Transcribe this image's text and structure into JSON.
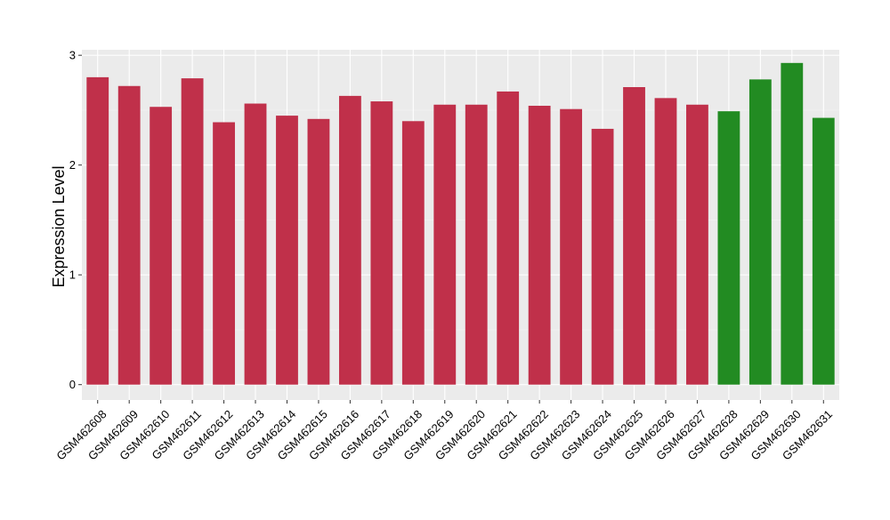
{
  "chart_data": {
    "type": "bar",
    "title": "",
    "xlabel": "",
    "ylabel": "Expression Level",
    "ylim": [
      -0.14,
      3.05
    ],
    "yticks": [
      0,
      1,
      2,
      3
    ],
    "grid": true,
    "legend": "none",
    "categories": [
      "GSM462608",
      "GSM462609",
      "GSM462610",
      "GSM462611",
      "GSM462612",
      "GSM462613",
      "GSM462614",
      "GSM462615",
      "GSM462616",
      "GSM462617",
      "GSM462618",
      "GSM462619",
      "GSM462620",
      "GSM462621",
      "GSM462622",
      "GSM462623",
      "GSM462624",
      "GSM462625",
      "GSM462626",
      "GSM462627",
      "GSM462628",
      "GSM462629",
      "GSM462630",
      "GSM462631"
    ],
    "values": [
      2.8,
      2.72,
      2.53,
      2.79,
      2.39,
      2.56,
      2.45,
      2.42,
      2.63,
      2.58,
      2.4,
      2.55,
      2.55,
      2.67,
      2.54,
      2.51,
      2.33,
      2.71,
      2.61,
      2.55,
      2.49,
      2.78,
      2.93,
      2.43
    ],
    "bar_colors": [
      "#c0304a",
      "#c0304a",
      "#c0304a",
      "#c0304a",
      "#c0304a",
      "#c0304a",
      "#c0304a",
      "#c0304a",
      "#c0304a",
      "#c0304a",
      "#c0304a",
      "#c0304a",
      "#c0304a",
      "#c0304a",
      "#c0304a",
      "#c0304a",
      "#c0304a",
      "#c0304a",
      "#c0304a",
      "#c0304a",
      "#228b22",
      "#228b22",
      "#228b22",
      "#228b22"
    ],
    "colors": {
      "panel_background": "#ebebeb",
      "grid_major": "#ffffff",
      "grid_minor": "#f5f5f5",
      "axis_text": "#000000"
    }
  }
}
